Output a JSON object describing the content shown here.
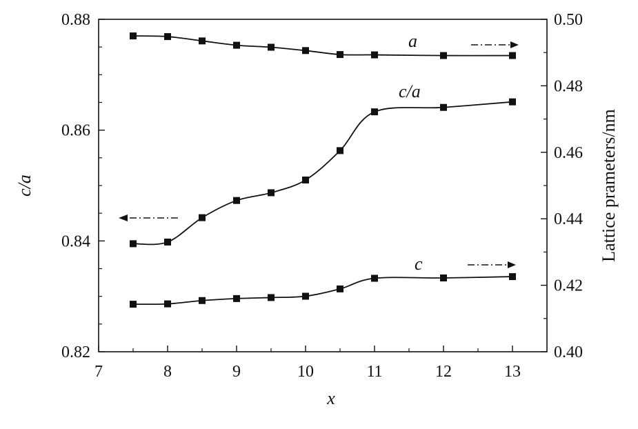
{
  "chart_data": {
    "type": "line",
    "xlabel": "x",
    "ylabel_left": "c/a",
    "ylabel_right": "Lattice prameters/nm",
    "xlim": [
      7,
      13.5
    ],
    "ylim_left": [
      0.82,
      0.88
    ],
    "ylim_right": [
      0.4,
      0.5
    ],
    "xticks": [
      7,
      8,
      9,
      10,
      11,
      12,
      13
    ],
    "xtick_labels": [
      "7",
      "8",
      "9",
      "10",
      "11",
      "12",
      "13"
    ],
    "yticks_left": [
      0.82,
      0.84,
      0.86,
      0.88
    ],
    "ytick_labels_left": [
      "0.82",
      "0.84",
      "0.86",
      "0.88"
    ],
    "yticks_right": [
      0.4,
      0.42,
      0.44,
      0.46,
      0.48,
      0.5
    ],
    "ytick_labels_right": [
      "0.40",
      "0.42",
      "0.44",
      "0.46",
      "0.48",
      "0.50"
    ],
    "series": [
      {
        "name": "a",
        "axis": "right",
        "x": [
          7.5,
          8,
          8.5,
          9,
          9.5,
          10,
          10.5,
          11,
          12,
          13
        ],
        "y": [
          0.495,
          0.4948,
          0.4935,
          0.4922,
          0.4916,
          0.4906,
          0.4894,
          0.4893,
          0.4891,
          0.4891
        ]
      },
      {
        "name": "c/a",
        "axis": "left",
        "x": [
          7.5,
          8,
          8.5,
          9,
          9.5,
          10,
          10.5,
          11,
          12,
          13
        ],
        "y": [
          0.8395,
          0.8398,
          0.8442,
          0.8473,
          0.8487,
          0.851,
          0.8563,
          0.8633,
          0.8641,
          0.8651
        ]
      },
      {
        "name": "c",
        "axis": "right",
        "x": [
          7.5,
          8,
          8.5,
          9,
          9.5,
          10,
          10.5,
          11,
          12,
          13
        ],
        "y": [
          0.4143,
          0.4144,
          0.4154,
          0.416,
          0.4163,
          0.4167,
          0.4189,
          0.4221,
          0.4222,
          0.4226
        ]
      }
    ],
    "grid": false,
    "colors": {
      "line": "#111111",
      "marker": "#111111"
    }
  }
}
